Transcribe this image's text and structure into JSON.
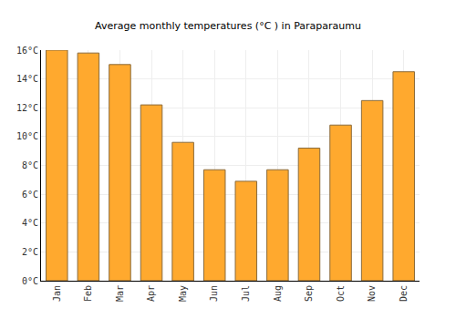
{
  "chart_data": {
    "type": "bar",
    "title": "Average monthly temperatures (°C ) in Paraparaumu",
    "categories": [
      "Jan",
      "Feb",
      "Mar",
      "Apr",
      "May",
      "Jun",
      "Jul",
      "Aug",
      "Sep",
      "Oct",
      "Nov",
      "Dec"
    ],
    "values": [
      16.0,
      15.8,
      15.0,
      12.2,
      9.6,
      7.7,
      6.9,
      7.7,
      9.2,
      10.8,
      12.5,
      14.5
    ],
    "color": "#ffa92e",
    "ylim": [
      0,
      16
    ],
    "yticks": [
      {
        "value": 0,
        "label": "0°C"
      },
      {
        "value": 2,
        "label": "2°C"
      },
      {
        "value": 4,
        "label": "4°C"
      },
      {
        "value": 6,
        "label": "6°C"
      },
      {
        "value": 8,
        "label": "8°C"
      },
      {
        "value": 10,
        "label": "10°C"
      },
      {
        "value": 12,
        "label": "12°C"
      },
      {
        "value": 14,
        "label": "14°C"
      },
      {
        "value": 16,
        "label": "16°C"
      }
    ],
    "grid": true
  }
}
